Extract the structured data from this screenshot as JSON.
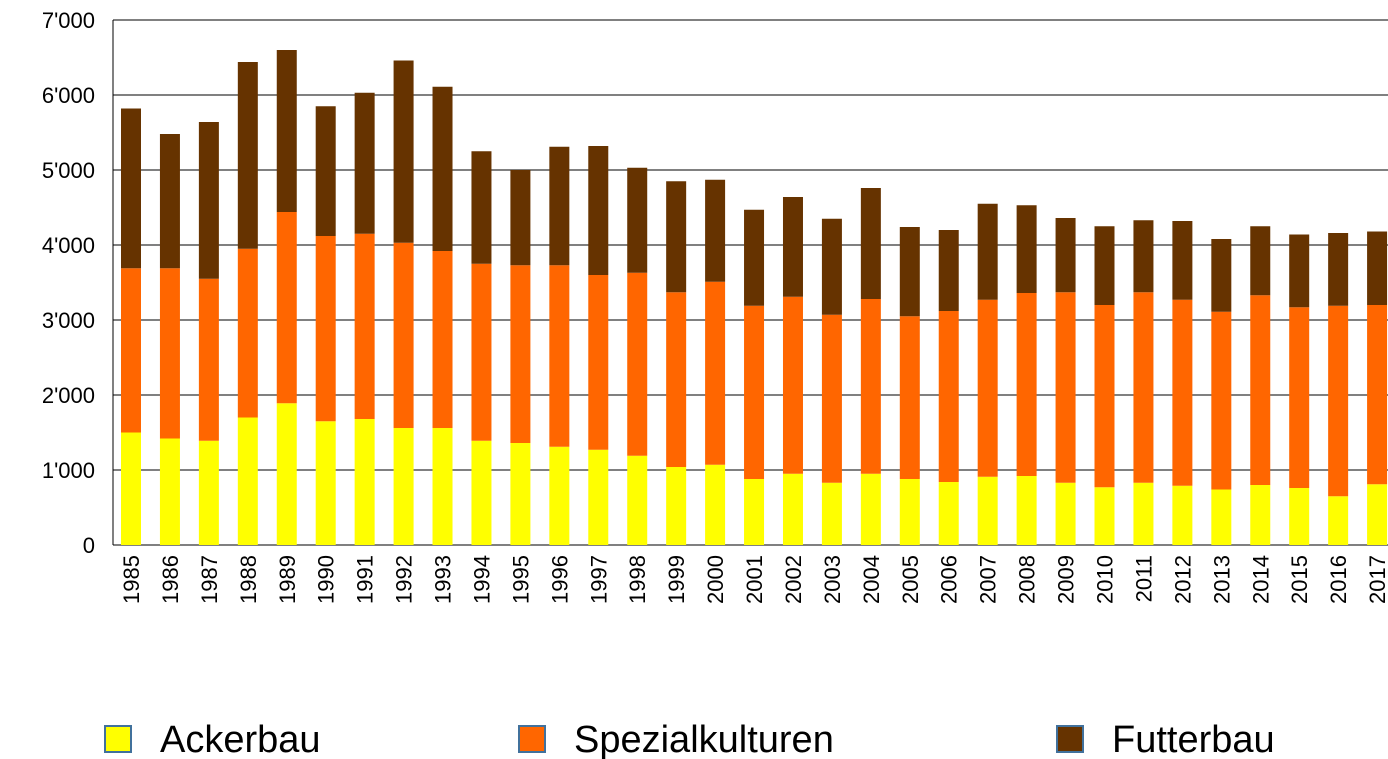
{
  "chart_data": {
    "type": "stacked_bar",
    "categories": [
      "1985",
      "1986",
      "1987",
      "1988",
      "1989",
      "1990",
      "1991",
      "1992",
      "1993",
      "1994",
      "1995",
      "1996",
      "1997",
      "1998",
      "1999",
      "2000",
      "2001",
      "2002",
      "2003",
      "2004",
      "2005",
      "2006",
      "2007",
      "2008",
      "2009",
      "2010",
      "2011",
      "2012",
      "2013",
      "2014",
      "2015",
      "2016",
      "2017"
    ],
    "series": [
      {
        "name": "Ackerbau",
        "color": "#ffff00",
        "values": [
          1500,
          1420,
          1390,
          1700,
          1890,
          1650,
          1680,
          1560,
          1560,
          1390,
          1360,
          1310,
          1270,
          1190,
          1040,
          1070,
          880,
          950,
          830,
          950,
          880,
          840,
          910,
          920,
          830,
          770,
          830,
          790,
          740,
          800,
          760,
          650,
          810
        ]
      },
      {
        "name": "Spezialkulturen",
        "color": "#ff6600",
        "values": [
          2190,
          2270,
          2160,
          2250,
          2550,
          2470,
          2470,
          2470,
          2360,
          2360,
          2370,
          2420,
          2330,
          2440,
          2330,
          2440,
          2310,
          2360,
          2240,
          2330,
          2170,
          2280,
          2360,
          2440,
          2540,
          2430,
          2540,
          2480,
          2370,
          2530,
          2410,
          2540,
          2390
        ]
      },
      {
        "name": "Futterbau",
        "color": "#663300",
        "values": [
          2130,
          1790,
          2090,
          2490,
          2160,
          1730,
          1880,
          2430,
          2190,
          1500,
          1270,
          1580,
          1720,
          1400,
          1480,
          1360,
          1280,
          1330,
          1280,
          1480,
          1190,
          1080,
          1280,
          1170,
          990,
          1050,
          960,
          1050,
          970,
          920,
          970,
          970,
          980
        ]
      }
    ],
    "ylim": [
      0,
      7000
    ],
    "yticks": [
      0,
      {
        "value": 1000,
        "label": "1'000"
      },
      {
        "value": 2000,
        "label": "2'000"
      },
      {
        "value": 3000,
        "label": "3'000"
      },
      {
        "value": 4000,
        "label": "4'000"
      },
      {
        "value": 5000,
        "label": "5'000"
      },
      {
        "value": 6000,
        "label": "6'000"
      },
      {
        "value": 7000,
        "label": "7'000"
      }
    ],
    "grid": true
  }
}
